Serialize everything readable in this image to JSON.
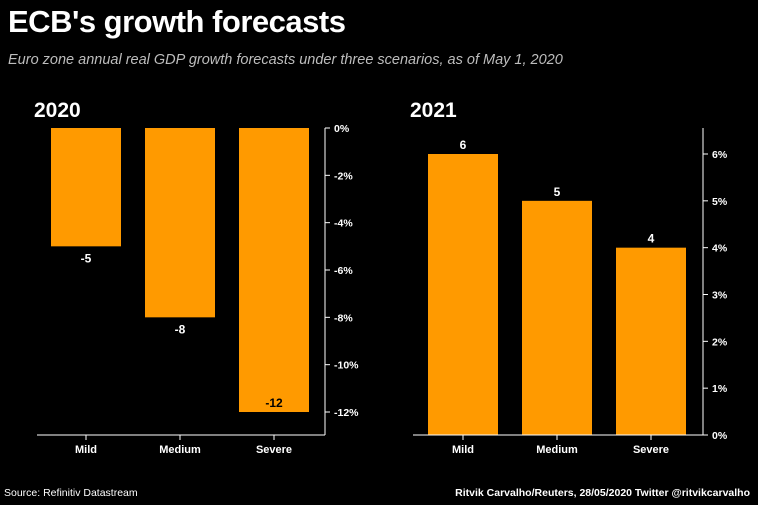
{
  "header": {
    "title": "ECB's growth forecasts",
    "subtitle": "Euro zone annual real GDP growth forecasts under three scenarios, as of May 1, 2020"
  },
  "footer": {
    "source": "Source: Refinitiv Datastream",
    "credit": "Ritvik Carvalho/Reuters, 28/05/2020 Twitter @ritvikcarvalho"
  },
  "colors": {
    "bar": "#ff9a00",
    "background": "#000000",
    "text": "#ffffff",
    "subtitle": "#bdbdbd"
  },
  "chart_data": [
    {
      "type": "bar",
      "title": "2020",
      "categories": [
        "Mild",
        "Medium",
        "Severe"
      ],
      "values": [
        -5,
        -8,
        -12
      ],
      "value_labels": [
        "-5",
        "-8",
        "-12"
      ],
      "ylim": [
        -13,
        0
      ],
      "y_ticks": [
        0,
        -2,
        -4,
        -6,
        -8,
        -10,
        -12
      ],
      "y_tick_labels": [
        "0%",
        "-2%",
        "-4%",
        "-6%",
        "-8%",
        "-10%",
        "-12%"
      ],
      "axis_side": "right",
      "grid": false
    },
    {
      "type": "bar",
      "title": "2021",
      "categories": [
        "Mild",
        "Medium",
        "Severe"
      ],
      "values": [
        6,
        5,
        4
      ],
      "value_labels": [
        "6",
        "5",
        "4"
      ],
      "ylim": [
        0,
        6.5
      ],
      "y_ticks": [
        0,
        1,
        2,
        3,
        4,
        5,
        6
      ],
      "y_tick_labels": [
        "0%",
        "1%",
        "2%",
        "3%",
        "4%",
        "5%",
        "6%"
      ],
      "axis_side": "right",
      "grid": false
    }
  ]
}
